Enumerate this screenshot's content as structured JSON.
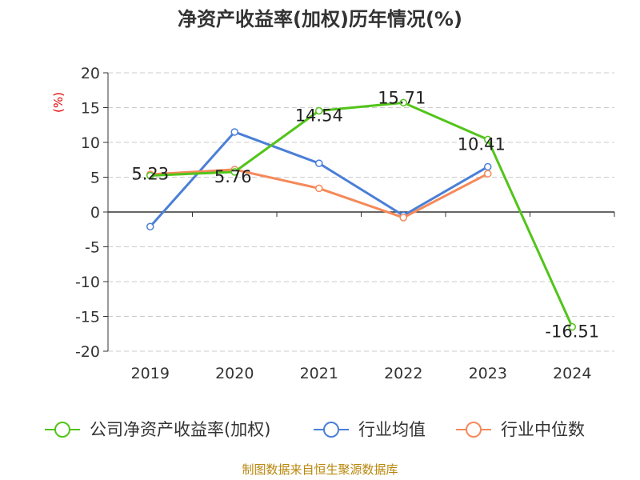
{
  "chart_data": {
    "type": "line",
    "title": "净资产收益率(加权)历年情况(%)",
    "ylabel": "(%)",
    "categories": [
      "2019",
      "2020",
      "2021",
      "2022",
      "2023",
      "2024"
    ],
    "ylim": [
      -20,
      20
    ],
    "yticks": [
      20,
      15,
      10,
      5,
      0,
      -5,
      -10,
      -15,
      -20
    ],
    "grid": "horizontal-dashed",
    "legend_position": "bottom",
    "series": [
      {
        "name": "公司净资产收益率(加权)",
        "color": "#52c41a",
        "values": [
          5.23,
          5.76,
          14.54,
          15.71,
          10.41,
          -16.51
        ],
        "labels": [
          "5.23",
          "5.76",
          "14.54",
          "15.71",
          "10.41",
          "-16.51"
        ]
      },
      {
        "name": "行业均值",
        "color": "#4a7fd8",
        "values": [
          -2.1,
          11.5,
          7.0,
          -0.5,
          6.5,
          null
        ]
      },
      {
        "name": "行业中位数",
        "color": "#f5895a",
        "values": [
          5.4,
          6.1,
          3.4,
          -0.8,
          5.5,
          null
        ]
      }
    ]
  },
  "source": "制图数据来自恒生聚源数据库"
}
